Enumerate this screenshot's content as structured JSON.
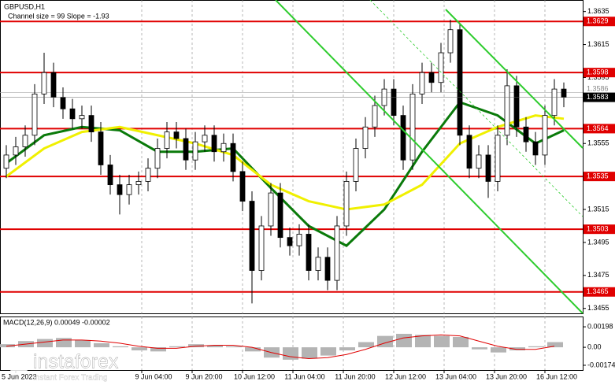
{
  "chart_data": {
    "type": "candlestick",
    "title": "GBPUSD,H1",
    "subtitle": "Channel size = 99 Slope = -1.93",
    "ylim": [
      1.3452,
      1.3642
    ],
    "yticks": [
      1.3635,
      1.3615,
      1.3595,
      1.3555,
      1.3515,
      1.3495,
      1.3475,
      1.3455
    ],
    "levels": [
      1.3629,
      1.3598,
      1.3564,
      1.3535,
      1.3503,
      1.3465
    ],
    "level_color": "#e00000",
    "last_price": 1.3583,
    "prev_price": 1.3586,
    "categories": [
      "5 Jun 2023",
      "9 Jun 04:00",
      "9 Jun 20:00",
      "10 Jun 12:00",
      "11 Jun 04:00",
      "11 Jun 20:00",
      "12 Jun 12:00",
      "13 Jun 04:00",
      "13 Jun 20:00",
      "16 Jun 12:00"
    ],
    "open": [
      1.354,
      1.3548,
      1.3553,
      1.356,
      1.3585,
      1.3598,
      1.3583,
      1.3576,
      1.357,
      1.3572,
      1.3562,
      1.3542,
      1.353,
      1.3524,
      1.353,
      1.3532,
      1.354,
      1.3552,
      1.3562,
      1.3558,
      1.3545,
      1.3556,
      1.356,
      1.355,
      1.3555,
      1.3538,
      1.352,
      1.3478,
      1.3505,
      1.3525,
      1.3498,
      1.3493,
      1.35,
      1.3478,
      1.3486,
      1.3472,
      1.3505,
      1.3532,
      1.3552,
      1.3565,
      1.3578,
      1.3588,
      1.3572,
      1.3545,
      1.3585,
      1.3598,
      1.3592,
      1.361,
      1.3624,
      1.356,
      1.354,
      1.3548,
      1.3532,
      1.356,
      1.359,
      1.3565,
      1.3556,
      1.3548,
      1.3572,
      1.3588
    ],
    "high": [
      1.3554,
      1.3559,
      1.3566,
      1.3591,
      1.361,
      1.3604,
      1.3589,
      1.3582,
      1.3578,
      1.3578,
      1.3568,
      1.3548,
      1.3536,
      1.3536,
      1.3538,
      1.3546,
      1.3558,
      1.3568,
      1.3568,
      1.3564,
      1.3562,
      1.3566,
      1.3566,
      1.3561,
      1.3561,
      1.3544,
      1.3526,
      1.3511,
      1.3531,
      1.3531,
      1.3504,
      1.3506,
      1.3506,
      1.3492,
      1.3492,
      1.3511,
      1.3538,
      1.3558,
      1.3571,
      1.3584,
      1.3594,
      1.3594,
      1.3578,
      1.3591,
      1.3604,
      1.3604,
      1.3616,
      1.363,
      1.3628,
      1.3566,
      1.3554,
      1.3554,
      1.3566,
      1.36,
      1.3596,
      1.3571,
      1.3562,
      1.3578,
      1.3594,
      1.3592
    ],
    "low": [
      1.3534,
      1.3542,
      1.3547,
      1.3554,
      1.3579,
      1.3577,
      1.357,
      1.3564,
      1.3564,
      1.3556,
      1.3536,
      1.3524,
      1.3512,
      1.3518,
      1.3524,
      1.3526,
      1.3534,
      1.3546,
      1.3552,
      1.3539,
      1.3539,
      1.355,
      1.3544,
      1.3544,
      1.3532,
      1.3514,
      1.3458,
      1.3472,
      1.3499,
      1.3492,
      1.3487,
      1.3487,
      1.3472,
      1.3472,
      1.3466,
      1.3466,
      1.3499,
      1.3526,
      1.3546,
      1.3559,
      1.3572,
      1.3566,
      1.3539,
      1.3539,
      1.3579,
      1.3586,
      1.3586,
      1.3604,
      1.3554,
      1.3534,
      1.3534,
      1.3522,
      1.3526,
      1.3554,
      1.3559,
      1.355,
      1.3542,
      1.3542,
      1.3566,
      1.3577
    ],
    "close": [
      1.3548,
      1.3553,
      1.356,
      1.3585,
      1.3598,
      1.3583,
      1.3576,
      1.357,
      1.3572,
      1.3562,
      1.3542,
      1.353,
      1.3524,
      1.353,
      1.3532,
      1.354,
      1.3552,
      1.3562,
      1.3558,
      1.3545,
      1.3556,
      1.356,
      1.355,
      1.3555,
      1.3538,
      1.352,
      1.3478,
      1.3505,
      1.3525,
      1.3498,
      1.3493,
      1.35,
      1.3478,
      1.3486,
      1.3472,
      1.3505,
      1.3532,
      1.3552,
      1.3565,
      1.3578,
      1.3588,
      1.3572,
      1.3545,
      1.3585,
      1.3598,
      1.3592,
      1.361,
      1.3624,
      1.356,
      1.354,
      1.3548,
      1.3532,
      1.356,
      1.359,
      1.3565,
      1.3556,
      1.3548,
      1.3572,
      1.3588,
      1.3583
    ],
    "overlays": [
      {
        "color": "#0a7a0a",
        "x": [
          0,
          4,
          8,
          12,
          16,
          20,
          24,
          28,
          32,
          36,
          40,
          44,
          48,
          52,
          56,
          59
        ],
        "values": [
          1.3543,
          1.356,
          1.3565,
          1.3563,
          1.355,
          1.355,
          1.3552,
          1.3528,
          1.3505,
          1.3493,
          1.3515,
          1.355,
          1.358,
          1.3572,
          1.3555,
          1.3563
        ]
      },
      {
        "color": "#f0f000",
        "x": [
          0,
          4,
          8,
          12,
          16,
          20,
          24,
          28,
          32,
          36,
          40,
          44,
          48,
          52,
          56,
          59
        ],
        "values": [
          1.3535,
          1.3552,
          1.3562,
          1.3565,
          1.356,
          1.3555,
          1.3548,
          1.353,
          1.352,
          1.3515,
          1.3518,
          1.353,
          1.3555,
          1.3565,
          1.3572,
          1.357
        ]
      }
    ],
    "macd": {
      "title": "MACD(12,26,9) 0.00049 -0.00002",
      "ylim": [
        -0.0022,
        0.0029
      ],
      "yticks": [
        0.00198,
        {
          "value": 0,
          "label": "0.00"
        },
        -0.00174
      ],
      "x": [
        0,
        2,
        4,
        6,
        8,
        10,
        12,
        14,
        16,
        18,
        20,
        22,
        24,
        26,
        28,
        30,
        32,
        34,
        36,
        38,
        40,
        42,
        44,
        46,
        48,
        50,
        52,
        54,
        56,
        58
      ],
      "histogram": [
        0.0003,
        0.0006,
        0.0008,
        0.0009,
        0.0007,
        0.0004,
        0.0001,
        -0.0003,
        -0.0004,
        0.0001,
        0.0003,
        0.0002,
        0.0001,
        -0.0004,
        -0.001,
        -0.0012,
        -0.0011,
        -0.0008,
        -0.0003,
        0.0005,
        0.0011,
        0.0013,
        0.0012,
        0.0011,
        0.001,
        -0.0002,
        -0.0005,
        -0.0003,
        0.0001,
        0.0005
      ],
      "signal": [
        0.0001,
        0.0003,
        0.0005,
        0.0007,
        0.0007,
        0.0006,
        0.0004,
        0.0001,
        -0.0001,
        -0.0001,
        0.0001,
        0.0002,
        0.0002,
        0.0,
        -0.0005,
        -0.0009,
        -0.0011,
        -0.001,
        -0.0007,
        -0.0002,
        0.0004,
        0.0009,
        0.0011,
        0.0012,
        0.0011,
        0.0006,
        0.0001,
        -0.0002,
        -0.0002,
        0.0001
      ],
      "histogram_color": "#b4b4b4",
      "signal_color": "#e00000"
    },
    "logo": {
      "name": "instaforex",
      "tagline": "Instant Forex Trading"
    }
  }
}
